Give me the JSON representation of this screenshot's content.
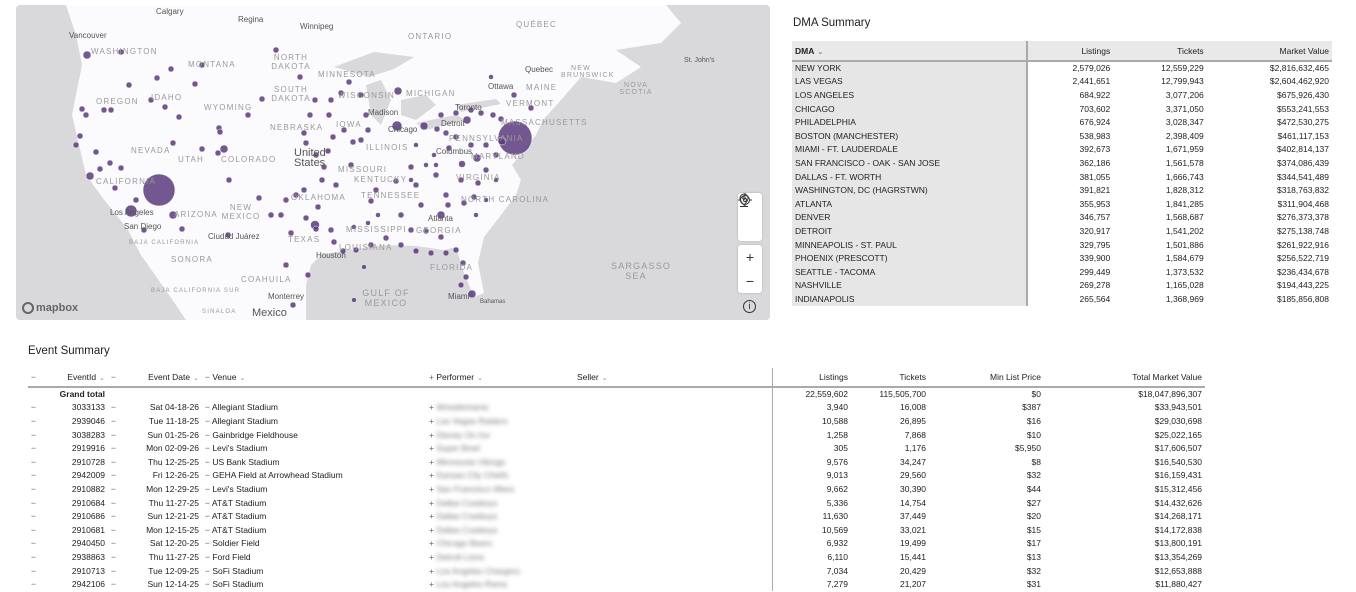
{
  "map": {
    "attribution": "mapbox",
    "country_labels": {
      "us": "United States",
      "mexico": "Mexico"
    },
    "region_labels": [
      "Washington",
      "Montana",
      "North Dakota",
      "Minnesota",
      "Oregon",
      "Idaho",
      "South Dakota",
      "Wyoming",
      "Nebraska",
      "Iowa",
      "Nevada",
      "Utah",
      "Colorado",
      "California",
      "Missouri",
      "Illinois",
      "Oklahoma",
      "Arizona",
      "New Mexico",
      "Texas",
      "Louisiana",
      "Baja California",
      "Sonora",
      "Coahuila",
      "Baja California Sur",
      "Sinaloa",
      "Kentucky",
      "Tennessee",
      "Virginia",
      "North Carolina",
      "Georgia",
      "Florida",
      "Pennsylvania",
      "Maryland",
      "Massachusetts",
      "Vermont",
      "Maine",
      "Michigan",
      "Ontario",
      "Québec",
      "New Brunswick",
      "Nova Scotia",
      "Wisconsin",
      "Mississippi"
    ],
    "city_labels": [
      "Calgary",
      "Regina",
      "Winnipeg",
      "Vancouver",
      "Los Angeles",
      "San Diego",
      "Ciudad Juárez",
      "Monterrey",
      "Houston",
      "Madison",
      "Chicago",
      "Detroit",
      "Columbus",
      "Toronto",
      "Ottawa",
      "Quebec",
      "St. John's",
      "Atlanta",
      "Miami",
      "Bahamas"
    ],
    "water_labels": {
      "gulf": "Gulf of Mexico",
      "sargasso": "Sargasso Sea"
    },
    "controls": {
      "zoom_in": "+",
      "zoom_out": "−",
      "info": "i"
    },
    "marker_color": "#5b3a7e"
  },
  "dma": {
    "title": "DMA Summary",
    "columns": [
      "DMA",
      "Listings",
      "Tickets",
      "Market Value"
    ],
    "rows": [
      [
        "NEW YORK",
        "2,579,026",
        "12,559,229",
        "$2,816,632,465"
      ],
      [
        "LAS VEGAS",
        "2,441,651",
        "12,799,943",
        "$2,604,462,920"
      ],
      [
        "LOS ANGELES",
        "684,922",
        "3,077,206",
        "$675,926,430"
      ],
      [
        "CHICAGO",
        "703,602",
        "3,371,050",
        "$553,241,553"
      ],
      [
        "PHILADELPHIA",
        "676,924",
        "3,028,347",
        "$472,530,275"
      ],
      [
        "BOSTON (MANCHESTER)",
        "538,983",
        "2,398,409",
        "$461,117,153"
      ],
      [
        "MIAMI - FT. LAUDERDALE",
        "392,673",
        "1,671,959",
        "$402,814,137"
      ],
      [
        "SAN FRANCISCO - OAK - SAN JOSE",
        "362,186",
        "1,561,578",
        "$374,086,439"
      ],
      [
        "DALLAS - FT. WORTH",
        "381,055",
        "1,666,743",
        "$344,541,489"
      ],
      [
        "WASHINGTON, DC (HAGRSTWN)",
        "391,821",
        "1,828,312",
        "$318,763,832"
      ],
      [
        "ATLANTA",
        "355,953",
        "1,841,285",
        "$311,904,468"
      ],
      [
        "DENVER",
        "346,757",
        "1,568,687",
        "$276,373,378"
      ],
      [
        "DETROIT",
        "320,917",
        "1,541,202",
        "$275,138,748"
      ],
      [
        "MINNEAPOLIS - ST. PAUL",
        "329,795",
        "1,501,886",
        "$261,922,916"
      ],
      [
        "PHOENIX (PRESCOTT)",
        "339,900",
        "1,584,679",
        "$256,522,719"
      ],
      [
        "SEATTLE - TACOMA",
        "299,449",
        "1,373,532",
        "$236,434,678"
      ],
      [
        "NASHVILLE",
        "269,278",
        "1,165,028",
        "$194,443,225"
      ],
      [
        "INDIANAPOLIS",
        "265,564",
        "1,368,969",
        "$185,856,808"
      ]
    ]
  },
  "events": {
    "title": "Event Summary",
    "columns": {
      "eventid": "EventId",
      "date": "Event Date",
      "venue": "Venue",
      "performer": "Performer",
      "seller": "Seller",
      "listings": "Listings",
      "tickets": "Tickets",
      "min_price": "Min List Price",
      "total": "Total Market Value"
    },
    "grand_total": {
      "label": "Grand total",
      "listings": "22,559,602",
      "tickets": "115,505,700",
      "min_price": "$0",
      "total": "$18,047,896,307"
    },
    "rows": [
      [
        "3033133",
        "Sat 04-18-26",
        "Allegiant Stadium",
        "Wrestlemania",
        "3,940",
        "16,008",
        "$387",
        "$33,943,501"
      ],
      [
        "2939046",
        "Tue 11-18-25",
        "Allegiant Stadium",
        "Las Vegas Raiders",
        "10,588",
        "26,895",
        "$16",
        "$29,030,698"
      ],
      [
        "3038283",
        "Sun 01-25-26",
        "Gainbridge Fieldhouse",
        "Disney On Ice",
        "1,258",
        "7,868",
        "$10",
        "$25,022,165"
      ],
      [
        "2919916",
        "Mon 02-09-26",
        "Levi's Stadium",
        "Super Bowl",
        "305",
        "1,176",
        "$5,950",
        "$17,606,507"
      ],
      [
        "2910728",
        "Thu 12-25-25",
        "US Bank Stadium",
        "Minnesota Vikings",
        "9,576",
        "34,247",
        "$8",
        "$16,540,530"
      ],
      [
        "2942009",
        "Fri 12-26-25",
        "GEHA Field at Arrowhead Stadium",
        "Kansas City Chiefs",
        "9,013",
        "29,560",
        "$32",
        "$16,159,431"
      ],
      [
        "2910882",
        "Mon 12-29-25",
        "Levi's Stadium",
        "San Francisco 49ers",
        "9,662",
        "30,390",
        "$44",
        "$15,312,456"
      ],
      [
        "2910684",
        "Thu 11-27-25",
        "AT&T Stadium",
        "Dallas Cowboys",
        "5,336",
        "14,754",
        "$27",
        "$14,432,626"
      ],
      [
        "2910686",
        "Sun 12-21-25",
        "AT&T Stadium",
        "Dallas Cowboys",
        "11,630",
        "37,449",
        "$20",
        "$14,268,171"
      ],
      [
        "2910681",
        "Mon 12-15-25",
        "AT&T Stadium",
        "Dallas Cowboys",
        "10,569",
        "33,021",
        "$15",
        "$14,172,838"
      ],
      [
        "2940450",
        "Sat 12-20-25",
        "Soldier Field",
        "Chicago Bears",
        "6,932",
        "19,499",
        "$17",
        "$13,800,191"
      ],
      [
        "2938863",
        "Thu 11-27-25",
        "Ford Field",
        "Detroit Lions",
        "6,110",
        "15,441",
        "$13",
        "$13,354,269"
      ],
      [
        "2910713",
        "Tue 12-09-25",
        "SoFi Stadium",
        "Los Angeles Chargers",
        "7,034",
        "20,429",
        "$32",
        "$12,653,888"
      ],
      [
        "2942106",
        "Sun 12-14-25",
        "SoFi Stadium",
        "Los Angeles Rams",
        "7,279",
        "21,207",
        "$31",
        "$11,880,427"
      ]
    ]
  }
}
